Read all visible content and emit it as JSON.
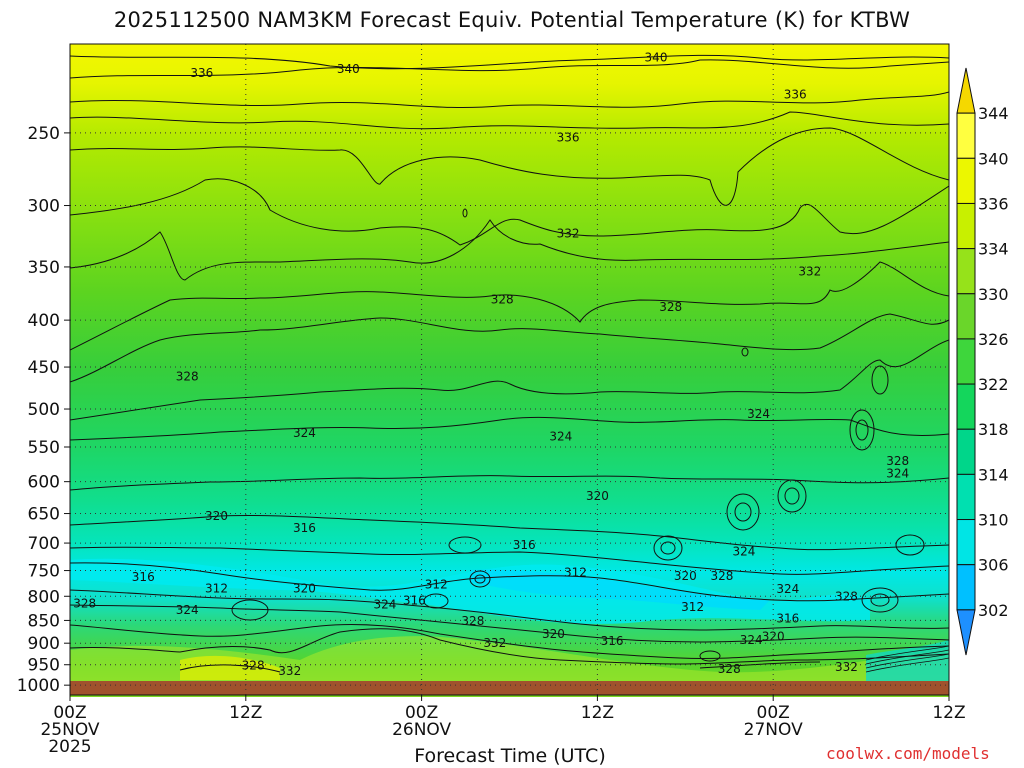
{
  "chart_data": {
    "type": "heatmap",
    "title": "2025112500 NAM3KM Forecast Equiv. Potential Temperature (K) for KTBW",
    "xlabel": "Forecast Time (UTC)",
    "ylabel": "",
    "credit": "coolwx.com/models",
    "x_ticks": [
      {
        "hour": 0,
        "l1": "00Z",
        "l2": "25NOV",
        "l3": "2025"
      },
      {
        "hour": 12,
        "l1": "12Z",
        "l2": "",
        "l3": ""
      },
      {
        "hour": 24,
        "l1": "00Z",
        "l2": "26NOV",
        "l3": ""
      },
      {
        "hour": 36,
        "l1": "12Z",
        "l2": "",
        "l3": ""
      },
      {
        "hour": 48,
        "l1": "00Z",
        "l2": "27NOV",
        "l3": ""
      },
      {
        "hour": 60,
        "l1": "12Z",
        "l2": "",
        "l3": ""
      }
    ],
    "xlim": [
      0,
      60
    ],
    "y_ticks": [
      250,
      300,
      350,
      400,
      450,
      500,
      550,
      600,
      650,
      700,
      750,
      800,
      850,
      900,
      950,
      1000
    ],
    "ylim_hPa": [
      1025,
      200
    ],
    "colorbar": {
      "levels": [
        302,
        306,
        310,
        314,
        318,
        322,
        326,
        330,
        334,
        336,
        340,
        344
      ],
      "colors": [
        "#1e90ff",
        "#00c0ff",
        "#00e5e5",
        "#00e0b0",
        "#00d68a",
        "#14d65c",
        "#3ed63c",
        "#6ad62a",
        "#96e21a",
        "#c8f000",
        "#ecf700",
        "#ffff40",
        "#f5d800"
      ]
    },
    "contour_labels": [
      {
        "text": "336",
        "h": 9.0,
        "p": 215
      },
      {
        "text": "340",
        "h": 19.0,
        "p": 213
      },
      {
        "text": "340",
        "h": 40.0,
        "p": 207
      },
      {
        "text": "336",
        "h": 49.5,
        "p": 227
      },
      {
        "text": "336",
        "h": 34.0,
        "p": 253
      },
      {
        "text": "332",
        "h": 34.0,
        "p": 322
      },
      {
        "text": "332",
        "h": 50.5,
        "p": 354
      },
      {
        "text": "328",
        "h": 29.5,
        "p": 380
      },
      {
        "text": "328",
        "h": 41.0,
        "p": 387
      },
      {
        "text": "328",
        "h": 8.0,
        "p": 461
      },
      {
        "text": "324",
        "h": 16.0,
        "p": 531
      },
      {
        "text": "324",
        "h": 33.5,
        "p": 536
      },
      {
        "text": "324",
        "h": 47.0,
        "p": 506
      },
      {
        "text": "328",
        "h": 56.5,
        "p": 570
      },
      {
        "text": "324",
        "h": 56.5,
        "p": 588
      },
      {
        "text": "320",
        "h": 10.0,
        "p": 654
      },
      {
        "text": "316",
        "h": 16.0,
        "p": 674
      },
      {
        "text": "316",
        "h": 31.0,
        "p": 703
      },
      {
        "text": "320",
        "h": 36.0,
        "p": 622
      },
      {
        "text": "312",
        "h": 34.5,
        "p": 754
      },
      {
        "text": "324",
        "h": 46.0,
        "p": 715
      },
      {
        "text": "320",
        "h": 42.0,
        "p": 760
      },
      {
        "text": "328",
        "h": 44.5,
        "p": 760
      },
      {
        "text": "316",
        "h": 5.0,
        "p": 762
      },
      {
        "text": "312",
        "h": 10.0,
        "p": 785
      },
      {
        "text": "320",
        "h": 16.0,
        "p": 785
      },
      {
        "text": "328",
        "h": 1.0,
        "p": 815
      },
      {
        "text": "324",
        "h": 8.0,
        "p": 828
      },
      {
        "text": "324",
        "h": 21.5,
        "p": 817
      },
      {
        "text": "316",
        "h": 23.5,
        "p": 809
      },
      {
        "text": "312",
        "h": 25.0,
        "p": 777
      },
      {
        "text": "328",
        "h": 27.5,
        "p": 851
      },
      {
        "text": "332",
        "h": 29.0,
        "p": 900
      },
      {
        "text": "320",
        "h": 33.0,
        "p": 880
      },
      {
        "text": "316",
        "h": 37.0,
        "p": 895
      },
      {
        "text": "312",
        "h": 42.5,
        "p": 822
      },
      {
        "text": "324",
        "h": 46.5,
        "p": 893
      },
      {
        "text": "320",
        "h": 48.0,
        "p": 885
      },
      {
        "text": "316",
        "h": 49.0,
        "p": 846
      },
      {
        "text": "324",
        "h": 49.0,
        "p": 786
      },
      {
        "text": "328",
        "h": 53.0,
        "p": 800
      },
      {
        "text": "328",
        "h": 12.5,
        "p": 952
      },
      {
        "text": "332",
        "h": 15.0,
        "p": 965
      },
      {
        "text": "328",
        "h": 45.0,
        "p": 960
      },
      {
        "text": "332",
        "h": 53.0,
        "p": 956
      }
    ]
  }
}
